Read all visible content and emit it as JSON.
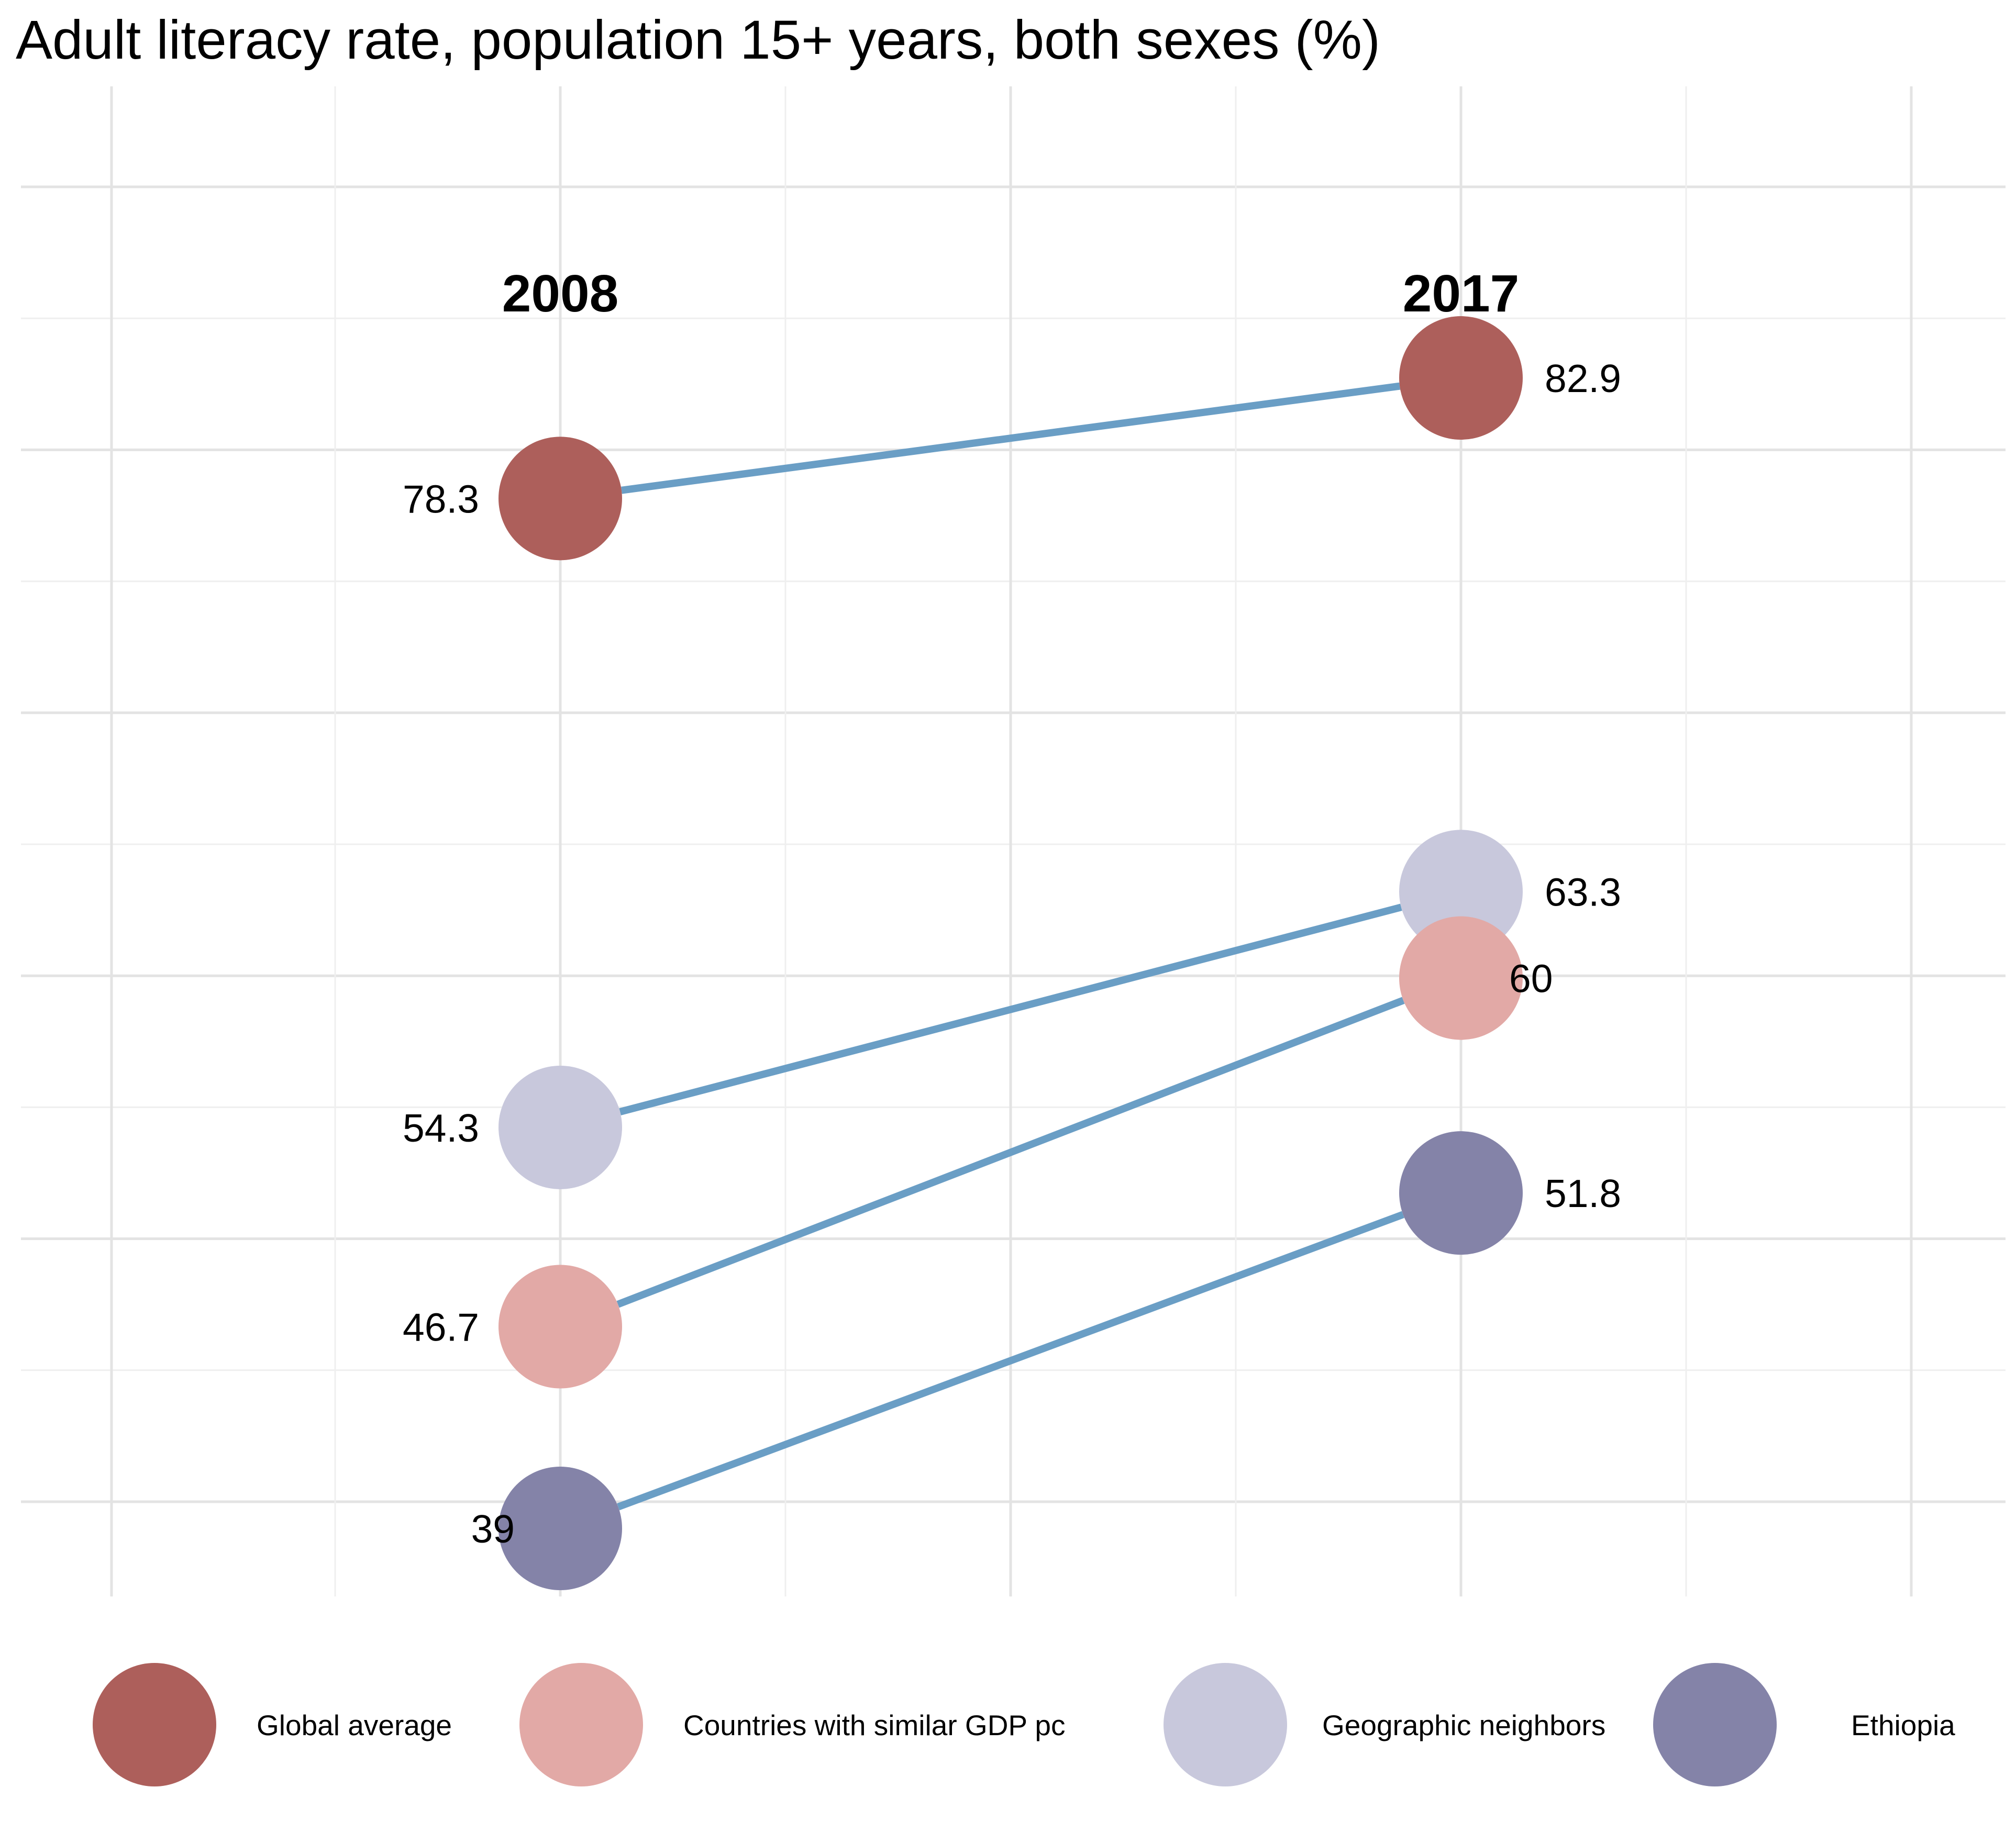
{
  "chart_data": {
    "type": "slope",
    "title": "Adult literacy rate, population 15+ years, both sexes (%)",
    "x": [
      "2008",
      "2017"
    ],
    "ylim": [
      35,
      92
    ],
    "grid": true,
    "legend_position": "bottom",
    "line_color": "#6a9ec5",
    "series": [
      {
        "name": "Global average",
        "color": "#ad5f5b",
        "values": [
          78.3,
          82.9
        ],
        "labels": [
          "78.3",
          "82.9"
        ]
      },
      {
        "name": "Countries with similar GDP pc",
        "color": "#e2a9a6",
        "values": [
          46.7,
          60
        ],
        "labels": [
          "46.7",
          "60"
        ]
      },
      {
        "name": "Geographic neighbors",
        "color": "#c8c8dc",
        "values": [
          54.3,
          63.3
        ],
        "labels": [
          "54.3",
          "63.3"
        ]
      },
      {
        "name": "Ethiopia",
        "color": "#8483a8",
        "values": [
          39,
          51.8
        ],
        "labels": [
          "39",
          "51.8"
        ]
      }
    ]
  }
}
